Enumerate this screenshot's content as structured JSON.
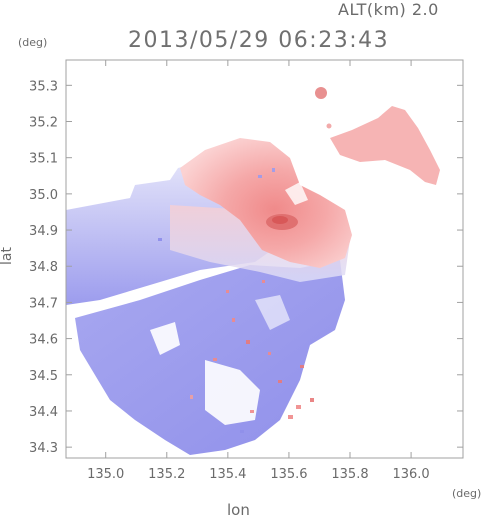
{
  "header": {
    "altitude_label": "ALT(km) 2.0",
    "timestamp": "2013/05/29 06:23:43"
  },
  "axes": {
    "y_unit": "(deg)",
    "x_unit": "(deg)",
    "y_label": "lat",
    "x_label": "lon",
    "y_ticks": [
      "35.3",
      "35.2",
      "35.1",
      "35.0",
      "34.9",
      "34.8",
      "34.7",
      "34.6",
      "34.5",
      "34.4",
      "34.3"
    ],
    "x_ticks": [
      "135.0",
      "135.2",
      "135.4",
      "135.6",
      "135.8",
      "136.0"
    ],
    "lon_range": [
      134.87,
      136.17
    ],
    "lat_range": [
      34.27,
      35.37
    ]
  },
  "colors": {
    "approaching": "#8c8cf0",
    "receding": "#f09090",
    "frame": "#a0a0a0"
  }
}
